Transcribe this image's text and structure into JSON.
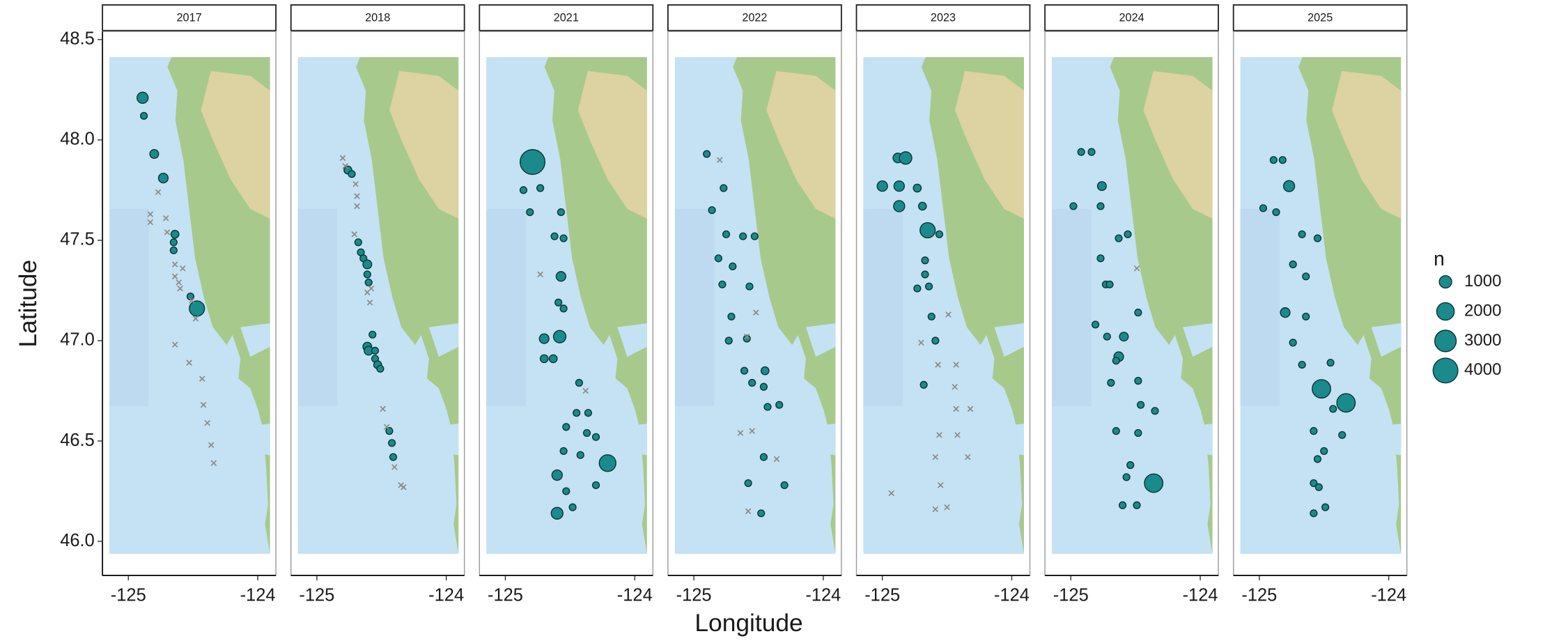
{
  "chart_data": {
    "type": "scatter",
    "x_label": "Longitude",
    "y_label": "Latitude",
    "xlim": [
      -125.2,
      -123.86
    ],
    "ylim": [
      45.83,
      48.54
    ],
    "xticks": [
      -125,
      -124
    ],
    "yticks": [
      {
        "value": 46.0,
        "label": "46.0"
      },
      46.5,
      {
        "value": 47.0,
        "label": "47.0"
      },
      47.5,
      {
        "value": 48.0,
        "label": "48.0"
      },
      48.5
    ],
    "color": "#1b8a8c",
    "edge_color": "#0c3535",
    "zero_color": "#8a8a8a",
    "size_legend": {
      "title": "n",
      "breaks": [
        1000,
        2000,
        3000,
        4000
      ]
    },
    "panels": [
      {
        "title": "2017",
        "lon": [
          -124.89,
          -124.88,
          -124.8,
          -124.73,
          -124.64,
          -124.65,
          -124.65,
          -124.47,
          -124.52,
          -124.83,
          -124.83,
          -124.77,
          -124.71,
          -124.7,
          -124.64,
          -124.64,
          -124.61,
          -124.58,
          -124.6,
          -124.51,
          -124.48,
          -124.64,
          -124.53,
          -124.43,
          -124.42,
          -124.39,
          -124.36,
          -124.34
        ],
        "lat": [
          48.21,
          48.12,
          47.93,
          47.81,
          47.53,
          47.49,
          47.45,
          47.16,
          47.22,
          47.59,
          47.63,
          47.74,
          47.61,
          47.54,
          47.38,
          47.32,
          47.29,
          47.36,
          47.26,
          47.2,
          47.11,
          46.98,
          46.89,
          46.81,
          46.68,
          46.59,
          46.48,
          46.39
        ],
        "n": [
          800,
          300,
          500,
          600,
          400,
          300,
          300,
          1500,
          300,
          0,
          0,
          0,
          0,
          0,
          0,
          0,
          0,
          0,
          0,
          0,
          0,
          0,
          0,
          0,
          0,
          0,
          0,
          0
        ]
      },
      {
        "title": "2018",
        "lon": [
          -124.76,
          -124.73,
          -124.68,
          -124.66,
          -124.64,
          -124.61,
          -124.61,
          -124.6,
          -124.61,
          -124.6,
          -124.57,
          -124.55,
          -124.55,
          -124.53,
          -124.51,
          -124.44,
          -124.42,
          -124.41,
          -124.8,
          -124.78,
          -124.7,
          -124.69,
          -124.69,
          -124.71,
          -124.61,
          -124.58,
          -124.59,
          -124.49,
          -124.46,
          -124.4,
          -124.35,
          -124.33
        ],
        "lat": [
          47.85,
          47.83,
          47.49,
          47.44,
          47.41,
          47.38,
          47.33,
          47.29,
          46.97,
          46.95,
          47.03,
          46.95,
          46.91,
          46.88,
          46.86,
          46.55,
          46.49,
          46.42,
          47.91,
          47.87,
          47.78,
          47.72,
          47.67,
          47.53,
          47.24,
          47.26,
          47.19,
          46.66,
          46.57,
          46.37,
          46.28,
          46.27
        ],
        "n": [
          400,
          300,
          300,
          300,
          300,
          500,
          300,
          300,
          500,
          500,
          300,
          300,
          300,
          400,
          300,
          300,
          300,
          300,
          0,
          0,
          0,
          0,
          0,
          0,
          0,
          0,
          0,
          0,
          0,
          0,
          0,
          0
        ]
      },
      {
        "title": "2021",
        "lon": [
          -124.79,
          -124.86,
          -124.73,
          -124.81,
          -124.57,
          -124.62,
          -124.55,
          -124.57,
          -124.59,
          -124.55,
          -124.58,
          -124.7,
          -124.7,
          -124.63,
          -124.43,
          -124.45,
          -124.36,
          -124.53,
          -124.37,
          -124.3,
          -124.55,
          -124.42,
          -124.21,
          -124.6,
          -124.53,
          -124.3,
          -124.48,
          -124.6,
          -124.73,
          -124.38
        ],
        "lat": [
          47.89,
          47.75,
          47.76,
          47.64,
          47.64,
          47.52,
          47.51,
          47.32,
          47.19,
          47.16,
          47.02,
          47.01,
          46.91,
          46.91,
          46.79,
          46.64,
          46.64,
          46.57,
          46.54,
          46.52,
          46.45,
          46.43,
          46.39,
          46.33,
          46.25,
          46.28,
          46.17,
          46.14,
          47.33,
          46.75
        ],
        "n": [
          4000,
          300,
          300,
          300,
          300,
          300,
          300,
          600,
          300,
          300,
          1000,
          600,
          400,
          400,
          300,
          300,
          300,
          300,
          300,
          300,
          300,
          300,
          1800,
          700,
          300,
          300,
          300,
          900,
          0,
          0
        ]
      },
      {
        "title": "2022",
        "lon": [
          -124.9,
          -124.77,
          -124.86,
          -124.75,
          -124.62,
          -124.53,
          -124.81,
          -124.7,
          -124.78,
          -124.57,
          -124.71,
          -124.73,
          -124.59,
          -124.61,
          -124.45,
          -124.55,
          -124.46,
          -124.43,
          -124.34,
          -124.46,
          -124.58,
          -124.3,
          -124.48,
          -124.8,
          -124.52,
          -124.59,
          -124.64,
          -124.55,
          -124.36,
          -124.58
        ],
        "lat": [
          47.93,
          47.76,
          47.65,
          47.53,
          47.52,
          47.52,
          47.41,
          47.37,
          47.28,
          47.27,
          47.12,
          47.0,
          47.01,
          46.85,
          46.85,
          46.79,
          46.77,
          46.67,
          46.68,
          46.42,
          46.29,
          46.28,
          46.14,
          47.9,
          47.14,
          47.02,
          46.54,
          46.55,
          46.41,
          46.15
        ],
        "n": [
          300,
          300,
          300,
          300,
          300,
          300,
          300,
          300,
          300,
          300,
          300,
          300,
          300,
          300,
          400,
          300,
          300,
          300,
          300,
          300,
          300,
          300,
          300,
          0,
          0,
          0,
          0,
          0,
          0,
          0
        ]
      },
      {
        "title": "2023",
        "lon": [
          -125.0,
          -124.88,
          -124.82,
          -124.87,
          -124.87,
          -124.73,
          -124.69,
          -124.65,
          -124.56,
          -124.67,
          -124.67,
          -124.73,
          -124.64,
          -124.62,
          -124.59,
          -124.68,
          -124.7,
          -124.49,
          -124.57,
          -124.43,
          -124.44,
          -124.43,
          -124.32,
          -124.56,
          -124.42,
          -124.59,
          -124.34,
          -124.55,
          -124.93,
          -124.59,
          -124.5
        ],
        "lat": [
          47.77,
          47.91,
          47.91,
          47.77,
          47.67,
          47.76,
          47.67,
          47.55,
          47.53,
          47.4,
          47.33,
          47.26,
          47.27,
          47.12,
          47.0,
          46.78,
          46.99,
          47.13,
          46.88,
          46.88,
          46.77,
          46.66,
          46.66,
          46.53,
          46.53,
          46.42,
          46.42,
          46.28,
          46.24,
          46.16,
          46.17
        ],
        "n": [
          700,
          600,
          1000,
          700,
          800,
          400,
          400,
          1500,
          300,
          300,
          300,
          300,
          300,
          300,
          300,
          300,
          0,
          0,
          0,
          0,
          0,
          0,
          0,
          0,
          0,
          0,
          0,
          0,
          0,
          0,
          0
        ]
      },
      {
        "title": "2024",
        "lon": [
          -124.92,
          -124.84,
          -124.76,
          -124.98,
          -124.77,
          -124.63,
          -124.56,
          -124.77,
          -124.73,
          -124.7,
          -124.48,
          -124.81,
          -124.72,
          -124.59,
          -124.63,
          -124.65,
          -124.69,
          -124.48,
          -124.46,
          -124.35,
          -124.65,
          -124.48,
          -124.54,
          -124.36,
          -124.57,
          -124.6,
          -124.49,
          -124.49
        ],
        "lat": [
          47.94,
          47.94,
          47.77,
          47.67,
          47.67,
          47.51,
          47.53,
          47.41,
          47.28,
          47.28,
          47.14,
          47.08,
          47.02,
          47.02,
          46.92,
          46.9,
          46.79,
          46.8,
          46.68,
          46.65,
          46.55,
          46.54,
          46.38,
          46.29,
          46.32,
          46.18,
          46.18,
          47.36
        ],
        "n": [
          300,
          300,
          500,
          300,
          300,
          300,
          300,
          300,
          300,
          300,
          300,
          300,
          300,
          500,
          600,
          300,
          300,
          300,
          300,
          300,
          300,
          300,
          300,
          2200,
          300,
          300,
          300,
          0
        ]
      },
      {
        "title": "2025",
        "lon": [
          -124.89,
          -124.82,
          -124.77,
          -124.97,
          -124.87,
          -124.67,
          -124.55,
          -124.74,
          -124.64,
          -124.8,
          -124.64,
          -124.74,
          -124.67,
          -124.45,
          -124.52,
          -124.33,
          -124.43,
          -124.58,
          -124.36,
          -124.5,
          -124.55,
          -124.58,
          -124.54,
          -124.49,
          -124.58
        ],
        "lat": [
          47.9,
          47.9,
          47.77,
          47.66,
          47.64,
          47.53,
          47.51,
          47.38,
          47.32,
          47.14,
          47.12,
          46.99,
          46.88,
          46.89,
          46.76,
          46.69,
          46.66,
          46.55,
          46.53,
          46.45,
          46.41,
          46.29,
          46.27,
          46.17,
          46.14
        ],
        "n": [
          300,
          300,
          800,
          300,
          300,
          300,
          300,
          300,
          300,
          600,
          300,
          300,
          300,
          300,
          2200,
          2200,
          300,
          300,
          300,
          300,
          300,
          300,
          300,
          300,
          300
        ]
      }
    ]
  }
}
